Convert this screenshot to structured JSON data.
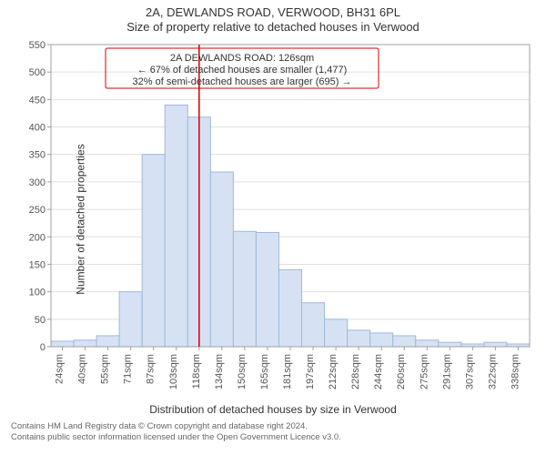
{
  "header": {
    "title_main": "2A, DEWLANDS ROAD, VERWOOD, BH31 6PL",
    "title_sub": "Size of property relative to detached houses in Verwood"
  },
  "chart": {
    "type": "histogram",
    "ylim": [
      0,
      550
    ],
    "ytick_step": 50,
    "yticks": [
      0,
      50,
      100,
      150,
      200,
      250,
      300,
      350,
      400,
      450,
      500,
      550
    ],
    "xlabels": [
      "24sqm",
      "40sqm",
      "55sqm",
      "71sqm",
      "87sqm",
      "103sqm",
      "118sqm",
      "134sqm",
      "150sqm",
      "165sqm",
      "181sqm",
      "197sqm",
      "212sqm",
      "228sqm",
      "244sqm",
      "260sqm",
      "275sqm",
      "291sqm",
      "307sqm",
      "322sqm",
      "338sqm"
    ],
    "values": [
      10,
      12,
      20,
      100,
      350,
      440,
      418,
      318,
      210,
      208,
      140,
      80,
      50,
      30,
      25,
      20,
      12,
      8,
      5,
      8,
      5
    ],
    "bar_fill": "#d6e2f4",
    "bar_stroke": "#9db8de",
    "grid_color": "#e0e0e0",
    "axis_color": "#a0a0a0",
    "background_color": "#ffffff",
    "axis_label_fontsize": 11,
    "vline_color": "#d00000",
    "vline_x_index": 6.5,
    "xlabel": "Distribution of detached houses by size in Verwood",
    "ylabel": "Number of detached properties"
  },
  "annotation": {
    "line1": "2A DEWLANDS ROAD: 126sqm",
    "line2": "← 67% of detached houses are smaller (1,477)",
    "line3": "32% of semi-detached houses are larger (695) →",
    "box_stroke": "#d00000"
  },
  "attribution": {
    "line1": "Contains HM Land Registry data © Crown copyright and database right 2024.",
    "line2": "Contains public sector information licensed under the Open Government Licence v3.0."
  }
}
